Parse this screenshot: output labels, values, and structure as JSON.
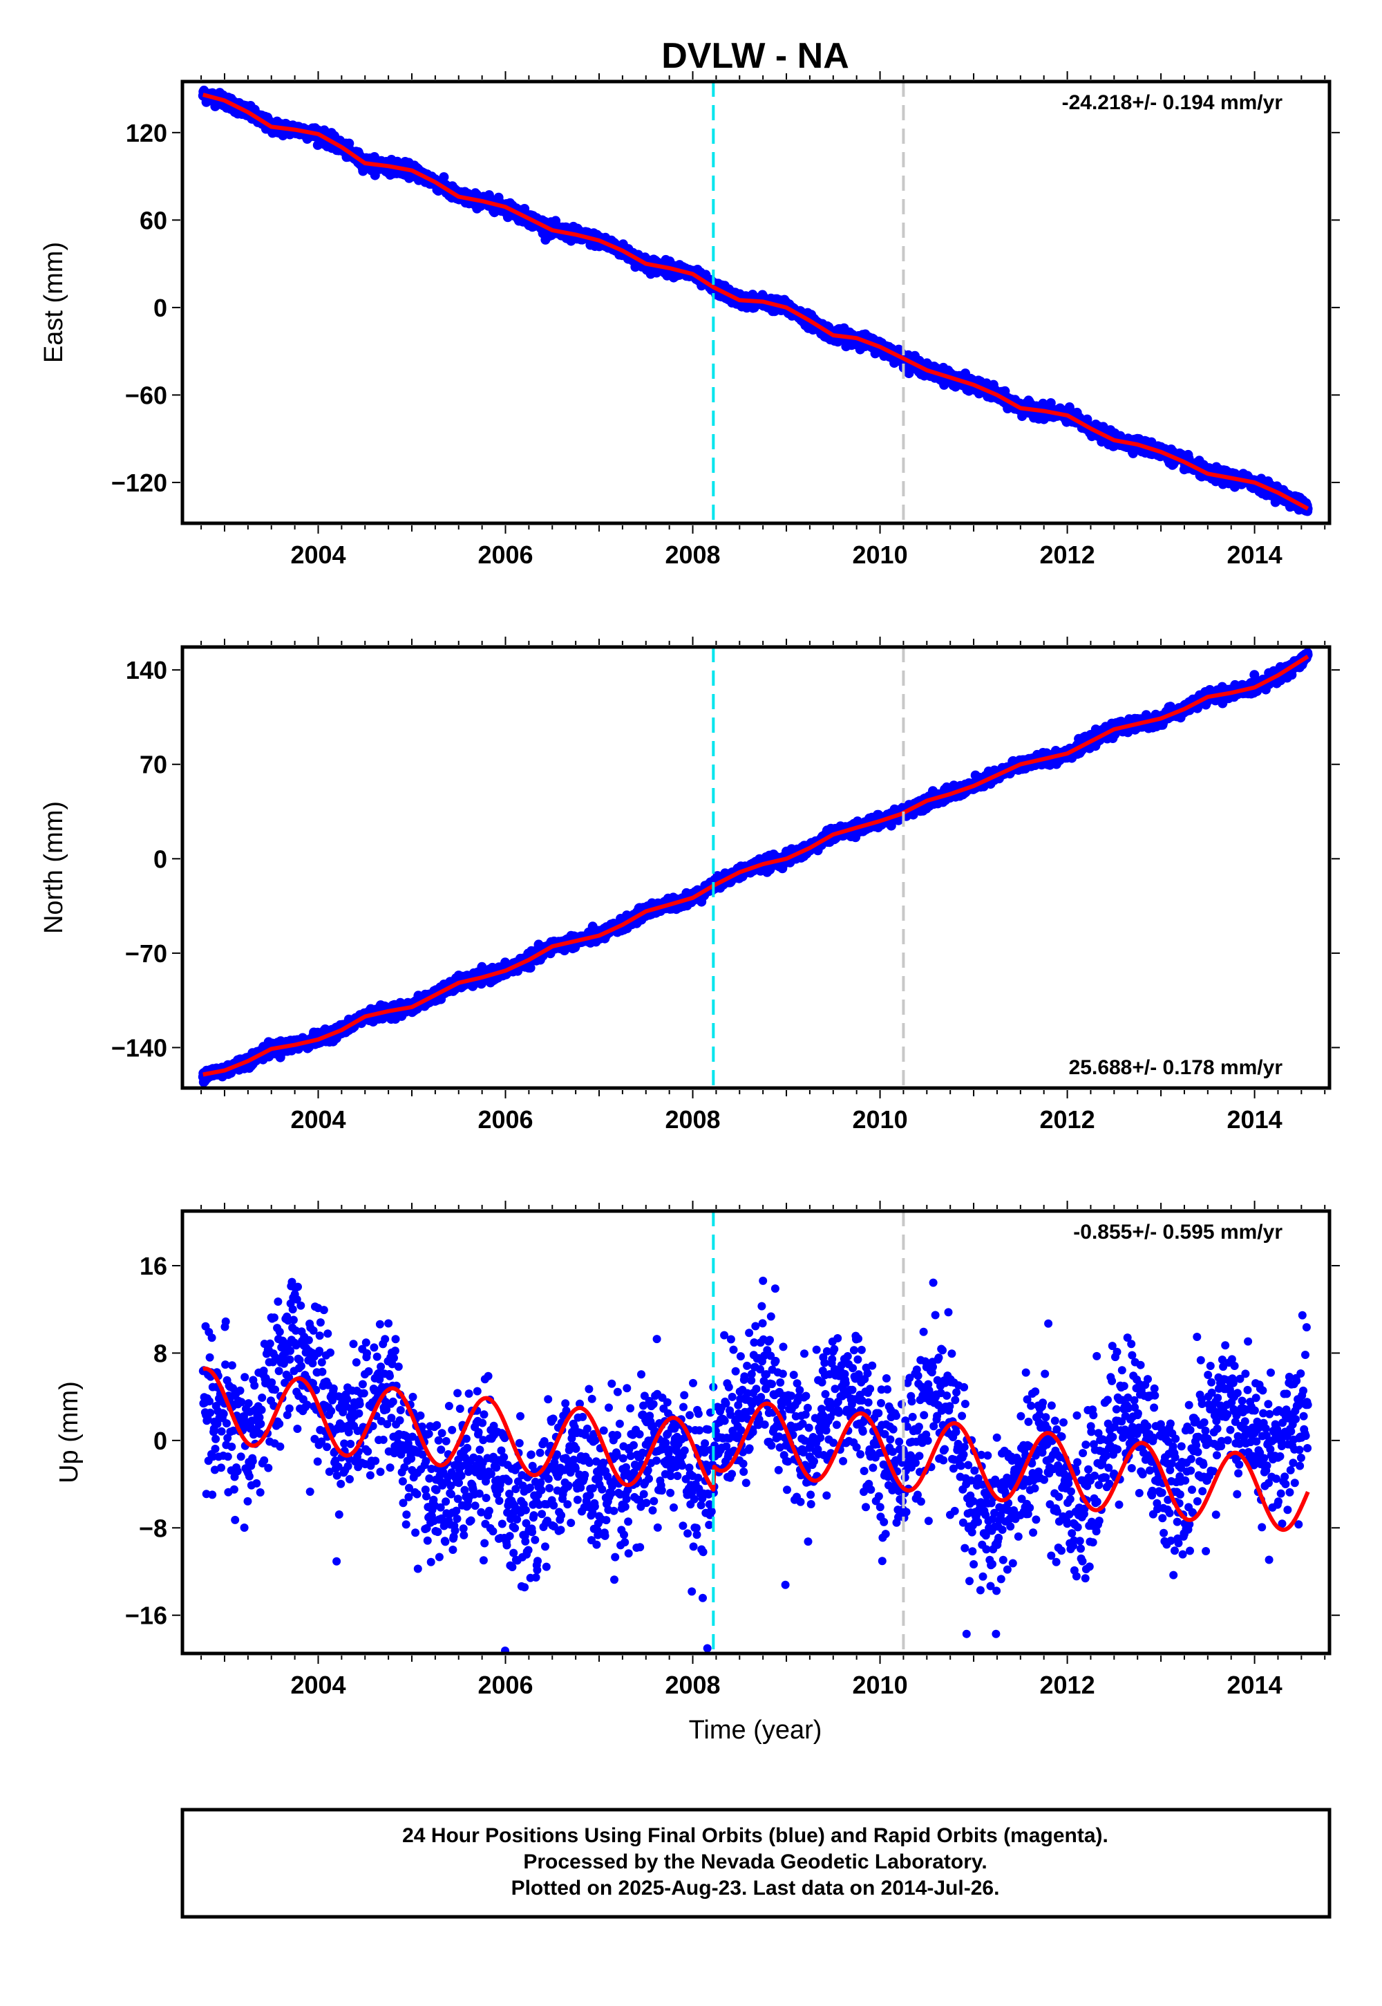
{
  "title": "DVLW - NA",
  "colors": {
    "final_points": "#0000ff",
    "model_line": "#ff0000",
    "event_equipment": "#00e5ee",
    "event_other": "#c8c8c8",
    "frame": "#000000"
  },
  "chart_data": [
    {
      "type": "scatter",
      "ylabel": "East (mm)",
      "xlabel": "",
      "xlim": [
        2002.55,
        2014.8
      ],
      "ylim": [
        -148,
        155
      ],
      "xticks": [
        2004,
        2006,
        2008,
        2010,
        2012,
        2014
      ],
      "yticks": [
        120,
        60,
        0,
        -60,
        -120
      ],
      "ytick_labels": [
        "120",
        "60",
        "0",
        "−60",
        "−120"
      ],
      "rate_label": "-24.218+/- 0.194 mm/yr",
      "rate_position": "top-right",
      "series": [
        {
          "x": [
            2002.77,
            2003.0,
            2003.25,
            2003.5,
            2003.75,
            2004.0,
            2004.25,
            2004.5,
            2004.75,
            2005.0,
            2005.25,
            2005.5,
            2005.75,
            2006.0,
            2006.25,
            2006.5,
            2006.75,
            2007.0,
            2007.25,
            2007.5,
            2007.75,
            2008.0,
            2008.22,
            2008.5,
            2008.75,
            2009.0,
            2009.25,
            2009.5,
            2009.75,
            2010.0,
            2010.22,
            2010.5,
            2010.75,
            2011.0,
            2011.25,
            2011.5,
            2011.75,
            2012.0,
            2012.25,
            2012.5,
            2012.75,
            2013.0,
            2013.25,
            2013.5,
            2013.75,
            2014.0,
            2014.25,
            2014.57
          ],
          "y": [
            146,
            142,
            134,
            124,
            122,
            119,
            110,
            99,
            97,
            94,
            86,
            76,
            73,
            69,
            61,
            53,
            50,
            46,
            39,
            30,
            27,
            23,
            14,
            5,
            4,
            0,
            -9,
            -19,
            -21,
            -27,
            -34,
            -43,
            -48,
            -53,
            -60,
            -69,
            -71,
            -74,
            -83,
            -91,
            -94,
            -99,
            -106,
            -114,
            -117,
            -120,
            -127,
            -138
          ]
        }
      ],
      "events": [
        {
          "x": 2008.22,
          "kind": "equipment"
        },
        {
          "x": 2010.25,
          "kind": "other"
        }
      ]
    },
    {
      "type": "scatter",
      "ylabel": "North (mm)",
      "xlabel": "",
      "xlim": [
        2002.55,
        2014.8
      ],
      "ylim": [
        -170,
        157
      ],
      "xticks": [
        2004,
        2006,
        2008,
        2010,
        2012,
        2014
      ],
      "yticks": [
        140,
        70,
        0,
        -70,
        -140
      ],
      "ytick_labels": [
        "140",
        "70",
        "0",
        "−70",
        "−140"
      ],
      "rate_label": "25.688+/- 0.178 mm/yr",
      "rate_position": "bottom-right",
      "series": [
        {
          "x": [
            2002.77,
            2003.0,
            2003.25,
            2003.5,
            2003.75,
            2004.0,
            2004.25,
            2004.5,
            2004.75,
            2005.0,
            2005.25,
            2005.5,
            2005.75,
            2006.0,
            2006.25,
            2006.5,
            2006.75,
            2007.0,
            2007.25,
            2007.5,
            2007.75,
            2008.0,
            2008.22,
            2008.5,
            2008.75,
            2009.0,
            2009.25,
            2009.5,
            2009.75,
            2010.0,
            2010.22,
            2010.5,
            2010.75,
            2011.0,
            2011.25,
            2011.5,
            2011.75,
            2012.0,
            2012.25,
            2012.5,
            2012.75,
            2013.0,
            2013.25,
            2013.5,
            2013.75,
            2014.0,
            2014.25,
            2014.57
          ],
          "y": [
            -160,
            -157,
            -150,
            -141,
            -138,
            -134,
            -127,
            -117,
            -113,
            -110,
            -101,
            -92,
            -88,
            -83,
            -75,
            -65,
            -61,
            -57,
            -49,
            -39,
            -34,
            -29,
            -20,
            -10,
            -4,
            0,
            8,
            18,
            23,
            28,
            33,
            43,
            48,
            54,
            62,
            70,
            74,
            78,
            87,
            96,
            100,
            104,
            111,
            120,
            123,
            127,
            136,
            150
          ]
        }
      ],
      "events": [
        {
          "x": 2008.22,
          "kind": "equipment"
        },
        {
          "x": 2010.25,
          "kind": "other"
        }
      ]
    },
    {
      "type": "scatter",
      "ylabel": "Up (mm)",
      "xlabel": "Time (year)",
      "xlim": [
        2002.55,
        2014.8
      ],
      "ylim": [
        -19.5,
        21
      ],
      "xticks": [
        2004,
        2006,
        2008,
        2010,
        2012,
        2014
      ],
      "yticks": [
        16,
        8,
        0,
        -8,
        -16
      ],
      "ytick_labels": [
        "16",
        "8",
        "0",
        "−8",
        "−16"
      ],
      "rate_label": "-0.855+/- 0.595 mm/yr",
      "rate_position": "top-right",
      "series": [
        {
          "x": [
            2002.77,
            2003.0,
            2003.25,
            2003.5,
            2003.75,
            2004.0,
            2004.25,
            2004.5,
            2004.75,
            2005.0,
            2005.25,
            2005.5,
            2005.75,
            2006.0,
            2006.25,
            2006.5,
            2006.75,
            2007.0,
            2007.25,
            2007.5,
            2007.75,
            2008.0,
            2008.2,
            2008.3,
            2008.5,
            2008.75,
            2009.0,
            2009.25,
            2009.5,
            2009.75,
            2010.0,
            2010.25,
            2010.5,
            2010.75,
            2011.0,
            2011.25,
            2011.5,
            2011.75,
            2012.0,
            2012.25,
            2012.5,
            2012.75,
            2013.0,
            2013.25,
            2013.5,
            2013.75,
            2014.0,
            2014.25,
            2014.57
          ],
          "y": [
            4,
            2,
            -1,
            5,
            9,
            5,
            0,
            3,
            5,
            -2,
            -5,
            -3,
            -1,
            -5,
            -6,
            -4,
            -1,
            -5,
            -5,
            -2,
            0,
            -3,
            -4,
            1,
            3,
            6,
            1,
            -1,
            4,
            5,
            -1,
            -2,
            4,
            2,
            -6,
            -8,
            -3,
            0,
            -6,
            -5,
            2,
            2,
            -3,
            -5,
            1,
            4,
            0,
            -1,
            3
          ]
        }
      ],
      "events": [
        {
          "x": 2008.22,
          "kind": "equipment"
        },
        {
          "x": 2010.25,
          "kind": "other"
        }
      ]
    }
  ],
  "footer": {
    "line1": "24 Hour Positions Using Final Orbits (blue) and Rapid Orbits (magenta).",
    "line2": "Processed by the Nevada Geodetic Laboratory.",
    "line3": "Plotted on 2025-Aug-23. Last data on 2014-Jul-26."
  }
}
